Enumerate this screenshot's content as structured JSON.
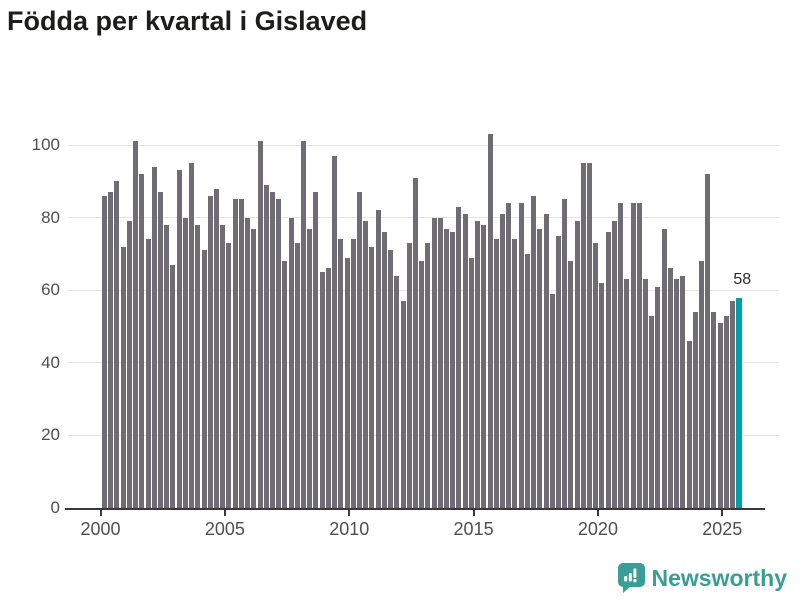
{
  "title": "Födda per kvartal i Gislaved",
  "chart_data": {
    "type": "bar",
    "title": "Födda per kvartal i Gislaved",
    "x_unit": "quarter",
    "x_start": "2000 Q1",
    "x_end": "2025 Q3",
    "x_tick_labels": [
      "2000",
      "2005",
      "2010",
      "2015",
      "2020",
      "2025"
    ],
    "y_ticks": [
      0,
      20,
      40,
      60,
      80,
      100
    ],
    "ylim": [
      0,
      107
    ],
    "grid": "horizontal",
    "legend": "none",
    "bar_color": "#6f6c74",
    "highlight_color": "#00a1a6",
    "highlight_index": 102,
    "highlight_label": "58",
    "values": [
      86,
      87,
      90,
      72,
      79,
      101,
      92,
      74,
      94,
      87,
      78,
      67,
      93,
      80,
      95,
      78,
      71,
      86,
      88,
      78,
      73,
      85,
      85,
      80,
      77,
      101,
      89,
      87,
      85,
      68,
      80,
      73,
      101,
      77,
      87,
      65,
      66,
      97,
      74,
      69,
      74,
      87,
      79,
      72,
      82,
      76,
      71,
      64,
      57,
      73,
      91,
      68,
      73,
      80,
      80,
      77,
      76,
      83,
      81,
      69,
      79,
      78,
      103,
      74,
      81,
      84,
      74,
      84,
      70,
      86,
      77,
      81,
      59,
      75,
      85,
      68,
      79,
      95,
      95,
      73,
      62,
      76,
      79,
      84,
      63,
      84,
      84,
      63,
      53,
      61,
      77,
      66,
      63,
      64,
      46,
      54,
      68,
      92,
      54,
      51,
      53,
      57,
      58
    ]
  },
  "footer": {
    "logo_text": "Newsworthy",
    "logo_color": "#3a9e96",
    "logo_icon": "newsworthy-speech-bubble-bar-chart-icon"
  }
}
